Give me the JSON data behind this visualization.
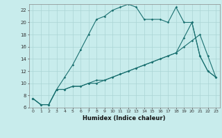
{
  "xlabel": "Humidex (Indice chaleur)",
  "ylabel": "",
  "background_color": "#c8ecec",
  "line_color": "#1a7070",
  "grid_color": "#aad4d4",
  "xlim": [
    -0.5,
    23.5
  ],
  "ylim": [
    6,
    23
  ],
  "xticks": [
    0,
    1,
    2,
    3,
    4,
    5,
    6,
    7,
    8,
    9,
    10,
    11,
    12,
    13,
    14,
    15,
    16,
    17,
    18,
    19,
    20,
    21,
    22,
    23
  ],
  "yticks": [
    6,
    8,
    10,
    12,
    14,
    16,
    18,
    20,
    22
  ],
  "line1_x": [
    0,
    1,
    2,
    3,
    4,
    5,
    6,
    7,
    8,
    9,
    10,
    11,
    12,
    13,
    14,
    15,
    16,
    17,
    18,
    19,
    20,
    21,
    22,
    23
  ],
  "line1_y": [
    7.5,
    6.5,
    6.5,
    9.0,
    11.0,
    13.0,
    15.5,
    18.0,
    20.5,
    21.0,
    22.0,
    22.5,
    23.0,
    22.5,
    20.5,
    20.5,
    20.5,
    20.0,
    22.5,
    20.0,
    20.0,
    14.5,
    12.0,
    11.0
  ],
  "line2_x": [
    0,
    1,
    2,
    3,
    4,
    5,
    6,
    7,
    8,
    9,
    10,
    11,
    12,
    13,
    14,
    15,
    16,
    17,
    18,
    19,
    20,
    21,
    22,
    23
  ],
  "line2_y": [
    7.5,
    6.5,
    6.5,
    9.0,
    9.0,
    9.5,
    9.5,
    10.0,
    10.5,
    10.5,
    11.0,
    11.5,
    12.0,
    12.5,
    13.0,
    13.5,
    14.0,
    14.5,
    15.0,
    16.0,
    17.0,
    18.0,
    14.5,
    11.0
  ],
  "line3_x": [
    0,
    1,
    2,
    3,
    4,
    5,
    6,
    7,
    8,
    9,
    10,
    11,
    12,
    13,
    14,
    15,
    16,
    17,
    18,
    19,
    20,
    21,
    22,
    23
  ],
  "line3_y": [
    7.5,
    6.5,
    6.5,
    9.0,
    9.0,
    9.5,
    9.5,
    10.0,
    10.0,
    10.5,
    11.0,
    11.5,
    12.0,
    12.5,
    13.0,
    13.5,
    14.0,
    14.5,
    15.0,
    17.5,
    20.0,
    14.5,
    12.0,
    11.0
  ]
}
